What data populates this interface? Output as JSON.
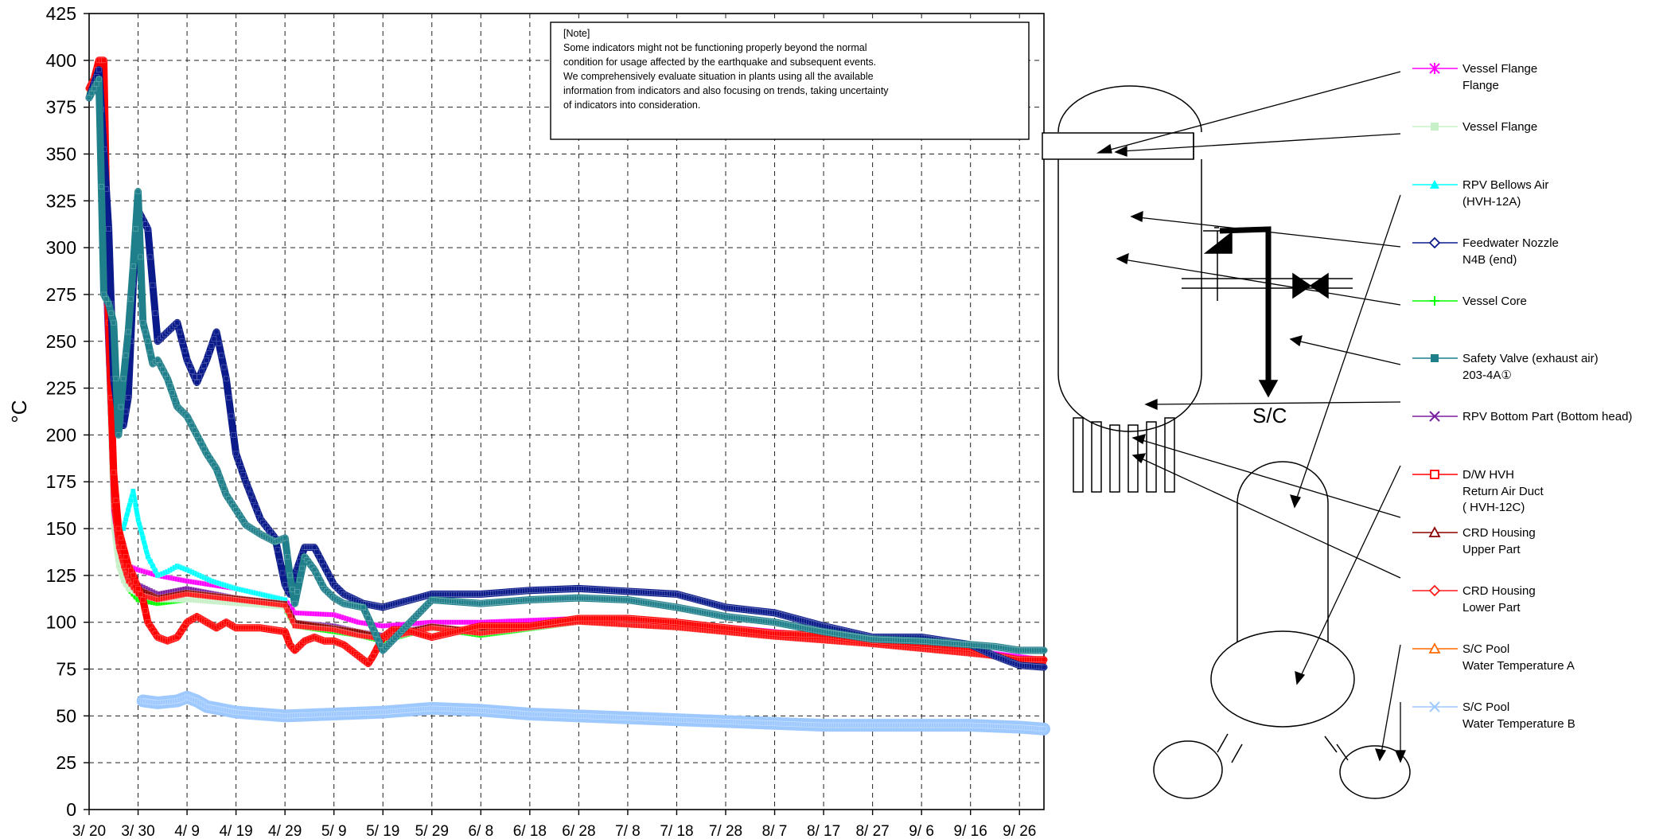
{
  "chart_data": {
    "type": "line",
    "title": "",
    "xlabel": "",
    "ylabel": "°C",
    "ylim": [
      0,
      425
    ],
    "grid": true,
    "legend_position": "right",
    "x_categories": [
      "3/ 20",
      "3/ 30",
      "4/ 9",
      "4/ 19",
      "4/ 29",
      "5/ 9",
      "5/ 19",
      "5/ 29",
      "6/ 8",
      "6/ 18",
      "6/ 28",
      "7/ 8",
      "7/ 18",
      "7/ 28",
      "8/ 7",
      "8/ 17",
      "8/ 27",
      "9/ 6",
      "9/ 16",
      "9/ 26"
    ],
    "y_ticks": [
      0,
      25,
      50,
      75,
      100,
      125,
      150,
      175,
      200,
      225,
      250,
      275,
      300,
      325,
      350,
      375,
      400,
      425
    ],
    "x_domain": [
      0,
      195
    ],
    "note": {
      "heading": "[Note]",
      "lines": [
        "Some indicators might not be functioning properly beyond the normal",
        "condition for usage affected by the earthquake and subsequent events.",
        "We comprehensively evaluate situation in plants using all the available",
        "information from indicators and also focusing on trends, taking uncertainty",
        "of indicators into consideration."
      ]
    },
    "series": [
      {
        "name": "Vessel Flange",
        "name2": "Flange",
        "color": "#ff00ff",
        "marker": "asterisk",
        "x": [
          0,
          2,
          4,
          5,
          6,
          7,
          8,
          10,
          14,
          20,
          30,
          40,
          42,
          50,
          55,
          60,
          70,
          80,
          100,
          120,
          140,
          160,
          180,
          195
        ],
        "y": [
          385,
          395,
          240,
          160,
          140,
          135,
          130,
          128,
          125,
          122,
          118,
          112,
          105,
          104,
          100,
          98,
          100,
          100,
          102,
          100,
          95,
          90,
          85,
          80
        ]
      },
      {
        "name": "Vessel Flange",
        "name2": "",
        "color": "#c8f0c8",
        "marker": "square",
        "x": [
          0,
          2,
          4,
          5,
          6,
          7,
          8,
          10,
          14,
          20,
          30,
          40,
          42,
          50,
          55,
          60,
          70,
          80,
          100,
          120,
          140,
          160,
          180,
          195
        ],
        "y": [
          380,
          390,
          230,
          150,
          130,
          122,
          118,
          115,
          112,
          112,
          110,
          108,
          100,
          98,
          95,
          93,
          98,
          95,
          100,
          98,
          92,
          88,
          83,
          78
        ]
      },
      {
        "name": "RPV Bellows Air",
        "name2": "(HVH-12A)",
        "color": "#00ffff",
        "marker": "triangle",
        "x": [
          0,
          2,
          4,
          5,
          6,
          7,
          8,
          9,
          10,
          11,
          12,
          14,
          16,
          18,
          20,
          25,
          30,
          35,
          40
        ],
        "y": [
          385,
          395,
          240,
          170,
          150,
          150,
          160,
          170,
          155,
          145,
          135,
          125,
          127,
          130,
          128,
          122,
          118,
          115,
          112
        ]
      },
      {
        "name": "Feedwater Nozzle",
        "name2": "N4B (end)",
        "color": "#0a1a8a",
        "marker": "diamond",
        "x": [
          0,
          2,
          4,
          5,
          6,
          7,
          8,
          9,
          10,
          12,
          14,
          16,
          18,
          20,
          22,
          24,
          26,
          28,
          30,
          32,
          35,
          38,
          40,
          41,
          42,
          44,
          46,
          48,
          50,
          52,
          56,
          60,
          70,
          80,
          90,
          100,
          120,
          130,
          140,
          150,
          160,
          170,
          180,
          185,
          190,
          195
        ],
        "y": [
          380,
          395,
          310,
          230,
          210,
          205,
          220,
          280,
          320,
          310,
          250,
          255,
          260,
          240,
          228,
          240,
          255,
          230,
          190,
          175,
          155,
          145,
          120,
          115,
          125,
          140,
          140,
          130,
          120,
          115,
          110,
          108,
          115,
          115,
          117,
          118,
          115,
          108,
          105,
          98,
          92,
          92,
          88,
          82,
          77,
          76
        ]
      },
      {
        "name": "Vessel Core",
        "name2": "",
        "color": "#00ff00",
        "marker": "plus",
        "x": [
          0,
          2,
          4,
          5,
          6,
          7,
          8,
          10,
          14,
          20,
          30,
          40,
          42,
          50,
          55,
          60,
          70,
          80,
          100,
          120,
          140,
          160,
          180,
          195
        ],
        "y": [
          382,
          392,
          235,
          155,
          135,
          125,
          118,
          112,
          110,
          112,
          112,
          108,
          98,
          95,
          93,
          90,
          97,
          93,
          100,
          97,
          92,
          88,
          83,
          79
        ]
      },
      {
        "name": "Safety Valve (exhaust air)",
        "name2": "203-4A①",
        "color": "#1f7f8a",
        "marker": "square",
        "x": [
          0,
          2,
          3,
          4,
          5,
          6,
          7,
          8,
          9,
          10,
          11,
          12,
          13,
          14,
          16,
          18,
          20,
          22,
          24,
          26,
          28,
          30,
          32,
          35,
          38,
          40,
          41,
          42,
          44,
          46,
          48,
          50,
          52,
          56,
          60,
          70,
          80,
          90,
          100,
          110,
          120,
          130,
          140,
          150,
          160,
          170,
          180,
          185,
          190,
          195
        ],
        "y": [
          380,
          390,
          275,
          270,
          260,
          200,
          230,
          255,
          290,
          330,
          260,
          250,
          238,
          240,
          230,
          215,
          210,
          200,
          190,
          182,
          168,
          160,
          152,
          147,
          143,
          145,
          125,
          110,
          135,
          128,
          118,
          113,
          110,
          108,
          85,
          112,
          110,
          112,
          113,
          112,
          108,
          103,
          100,
          95,
          91,
          90,
          88,
          87,
          85,
          85
        ]
      },
      {
        "name": "RPV Bottom Part (Bottom head)",
        "name2": "",
        "color": "#7a1fa0",
        "marker": "x",
        "x": [
          0,
          1,
          2,
          3,
          4,
          5,
          6,
          7,
          8,
          10,
          14,
          20,
          30,
          40,
          42,
          50,
          55,
          60,
          70,
          80,
          100,
          120,
          140,
          160,
          180,
          195
        ],
        "y": [
          385,
          390,
          380,
          300,
          235,
          170,
          145,
          135,
          128,
          120,
          115,
          118,
          113,
          110,
          100,
          98,
          95,
          93,
          98,
          95,
          100,
          98,
          92,
          88,
          83,
          79
        ]
      },
      {
        "name": "D/W HVH",
        "name2": "Return Air Duct",
        "name3": "( HVH-12C)",
        "color": "#ff0000",
        "marker": "square-open",
        "x": [
          0,
          1,
          2,
          3,
          4,
          5,
          6,
          7,
          8,
          9,
          10,
          11,
          12,
          14,
          16,
          18,
          20,
          22,
          24,
          26,
          28,
          30,
          35,
          40,
          41,
          42,
          44,
          46,
          48,
          50,
          52,
          55,
          57,
          58,
          60,
          62,
          64,
          66,
          70,
          80,
          90,
          100,
          110,
          120,
          130,
          140,
          150,
          160,
          170,
          180,
          185,
          190,
          195
        ],
        "y": [
          385,
          390,
          400,
          400,
          260,
          180,
          150,
          140,
          130,
          125,
          118,
          112,
          100,
          92,
          90,
          92,
          100,
          103,
          100,
          97,
          100,
          97,
          97,
          95,
          88,
          85,
          90,
          92,
          90,
          90,
          88,
          82,
          78,
          82,
          92,
          96,
          96,
          95,
          92,
          98,
          98,
          102,
          102,
          100,
          97,
          94,
          93,
          90,
          88,
          86,
          82,
          80,
          80
        ]
      },
      {
        "name": "CRD Housing",
        "name2": "Upper Part",
        "color": "#8b0000",
        "marker": "triangle-open",
        "x": [
          0,
          2,
          4,
          5,
          6,
          7,
          8,
          10,
          14,
          20,
          30,
          40,
          42,
          50,
          55,
          60,
          70,
          80,
          100,
          120,
          140,
          160,
          180,
          195
        ],
        "y": [
          385,
          395,
          245,
          165,
          142,
          132,
          125,
          118,
          113,
          116,
          113,
          110,
          100,
          97,
          95,
          92,
          98,
          95,
          100,
          98,
          92,
          88,
          83,
          79
        ]
      },
      {
        "name": "CRD Housing",
        "name2": "Lower Part",
        "color": "#ff1a1a",
        "marker": "diamond-open",
        "x": [
          0,
          2,
          4,
          5,
          6,
          7,
          8,
          10,
          14,
          20,
          30,
          40,
          42,
          50,
          55,
          60,
          70,
          80,
          100,
          120,
          140,
          160,
          180,
          195
        ],
        "y": [
          385,
          395,
          242,
          162,
          140,
          130,
          122,
          115,
          112,
          115,
          112,
          109,
          98,
          96,
          93,
          91,
          97,
          94,
          100,
          97,
          92,
          88,
          83,
          79
        ]
      },
      {
        "name": "S/C Pool",
        "name2": "Water Temperature A",
        "color": "#ff6a00",
        "marker": "triangle-open",
        "x": [],
        "y": []
      },
      {
        "name": "S/C Pool",
        "name2": "Water Temperature B",
        "color": "#9ec9ff",
        "marker": "x",
        "x": [
          11,
          14,
          18,
          20,
          22,
          24,
          26,
          28,
          30,
          35,
          40,
          50,
          60,
          70,
          80,
          90,
          100,
          110,
          120,
          130,
          140,
          150,
          160,
          170,
          180,
          190,
          195
        ],
        "y": [
          58,
          57,
          58,
          60,
          58,
          55,
          54,
          53,
          52,
          51,
          50,
          51,
          52,
          54,
          53,
          51,
          50,
          49,
          48,
          47,
          46,
          45,
          45,
          45,
          45,
          44,
          43
        ]
      }
    ]
  },
  "diagram": {
    "sc_label": "S/C"
  }
}
